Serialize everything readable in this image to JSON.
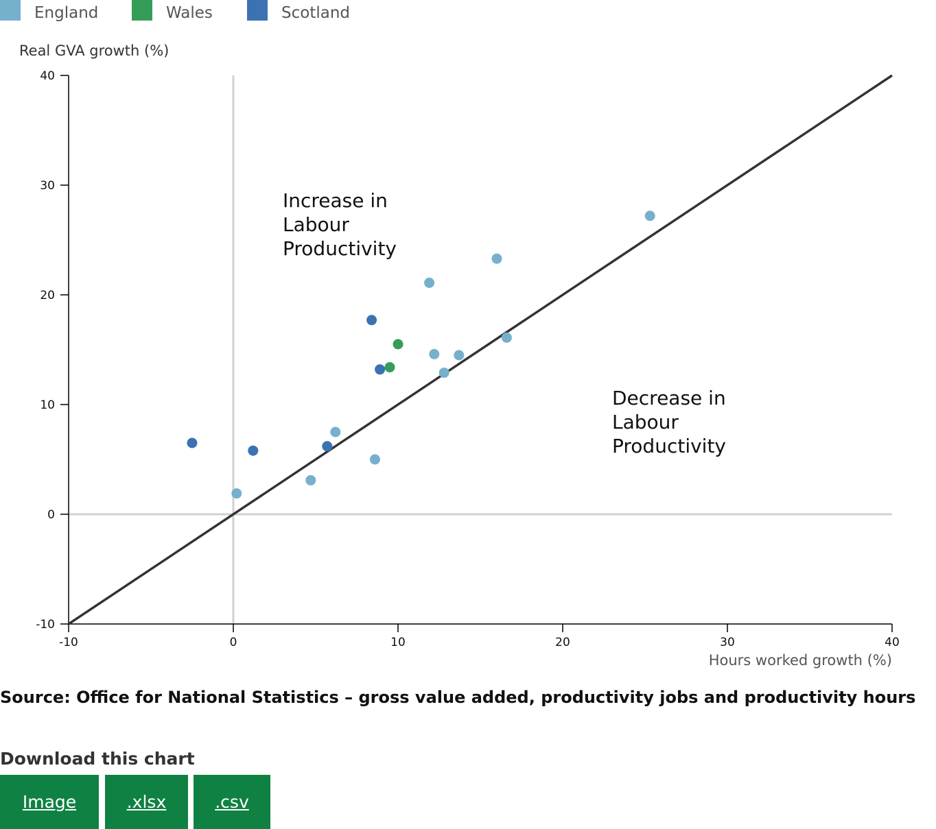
{
  "legend": {
    "items": [
      {
        "label": "England",
        "color": "#76b0cd"
      },
      {
        "label": "Wales",
        "color": "#369d58"
      },
      {
        "label": "Scotland",
        "color": "#3b72b2"
      }
    ]
  },
  "chart_data": {
    "type": "scatter",
    "ylabel": "Real GVA growth (%)",
    "xlabel": "Hours worked growth (%)",
    "xlim": [
      -10,
      40
    ],
    "ylim": [
      -10,
      40
    ],
    "xticks": [
      -10,
      0,
      10,
      20,
      30,
      40
    ],
    "yticks": [
      -10,
      0,
      10,
      20,
      30,
      40
    ],
    "annotations": [
      {
        "text": [
          "Increase in",
          "Labour",
          "Productivity"
        ],
        "x": 3,
        "y": 28
      },
      {
        "text": [
          "Decrease in",
          "Labour",
          "Productivity"
        ],
        "x": 23,
        "y": 10
      }
    ],
    "reference_line": {
      "from": [
        -10,
        -10
      ],
      "to": [
        40,
        40
      ]
    },
    "series": [
      {
        "name": "England",
        "color": "#76b0cd",
        "points": [
          [
            0.2,
            1.9
          ],
          [
            4.7,
            3.1
          ],
          [
            6.2,
            7.5
          ],
          [
            8.6,
            5.0
          ],
          [
            11.9,
            21.1
          ],
          [
            12.2,
            14.6
          ],
          [
            12.8,
            12.9
          ],
          [
            13.7,
            14.5
          ],
          [
            16.0,
            23.3
          ],
          [
            16.6,
            16.1
          ],
          [
            25.3,
            27.2
          ]
        ]
      },
      {
        "name": "Wales",
        "color": "#369d58",
        "points": [
          [
            9.5,
            13.4
          ],
          [
            10.0,
            15.5
          ]
        ]
      },
      {
        "name": "Scotland",
        "color": "#3b72b2",
        "points": [
          [
            -2.5,
            6.5
          ],
          [
            1.2,
            5.8
          ],
          [
            5.7,
            6.2
          ],
          [
            8.4,
            17.7
          ],
          [
            8.9,
            13.2
          ]
        ]
      }
    ]
  },
  "source_text": "Source: Office for National Statistics – gross value added, productivity jobs and productivity hours",
  "download": {
    "title": "Download this chart",
    "buttons": [
      {
        "label": "Image"
      },
      {
        "label": ".xlsx"
      },
      {
        "label": ".csv"
      }
    ]
  }
}
